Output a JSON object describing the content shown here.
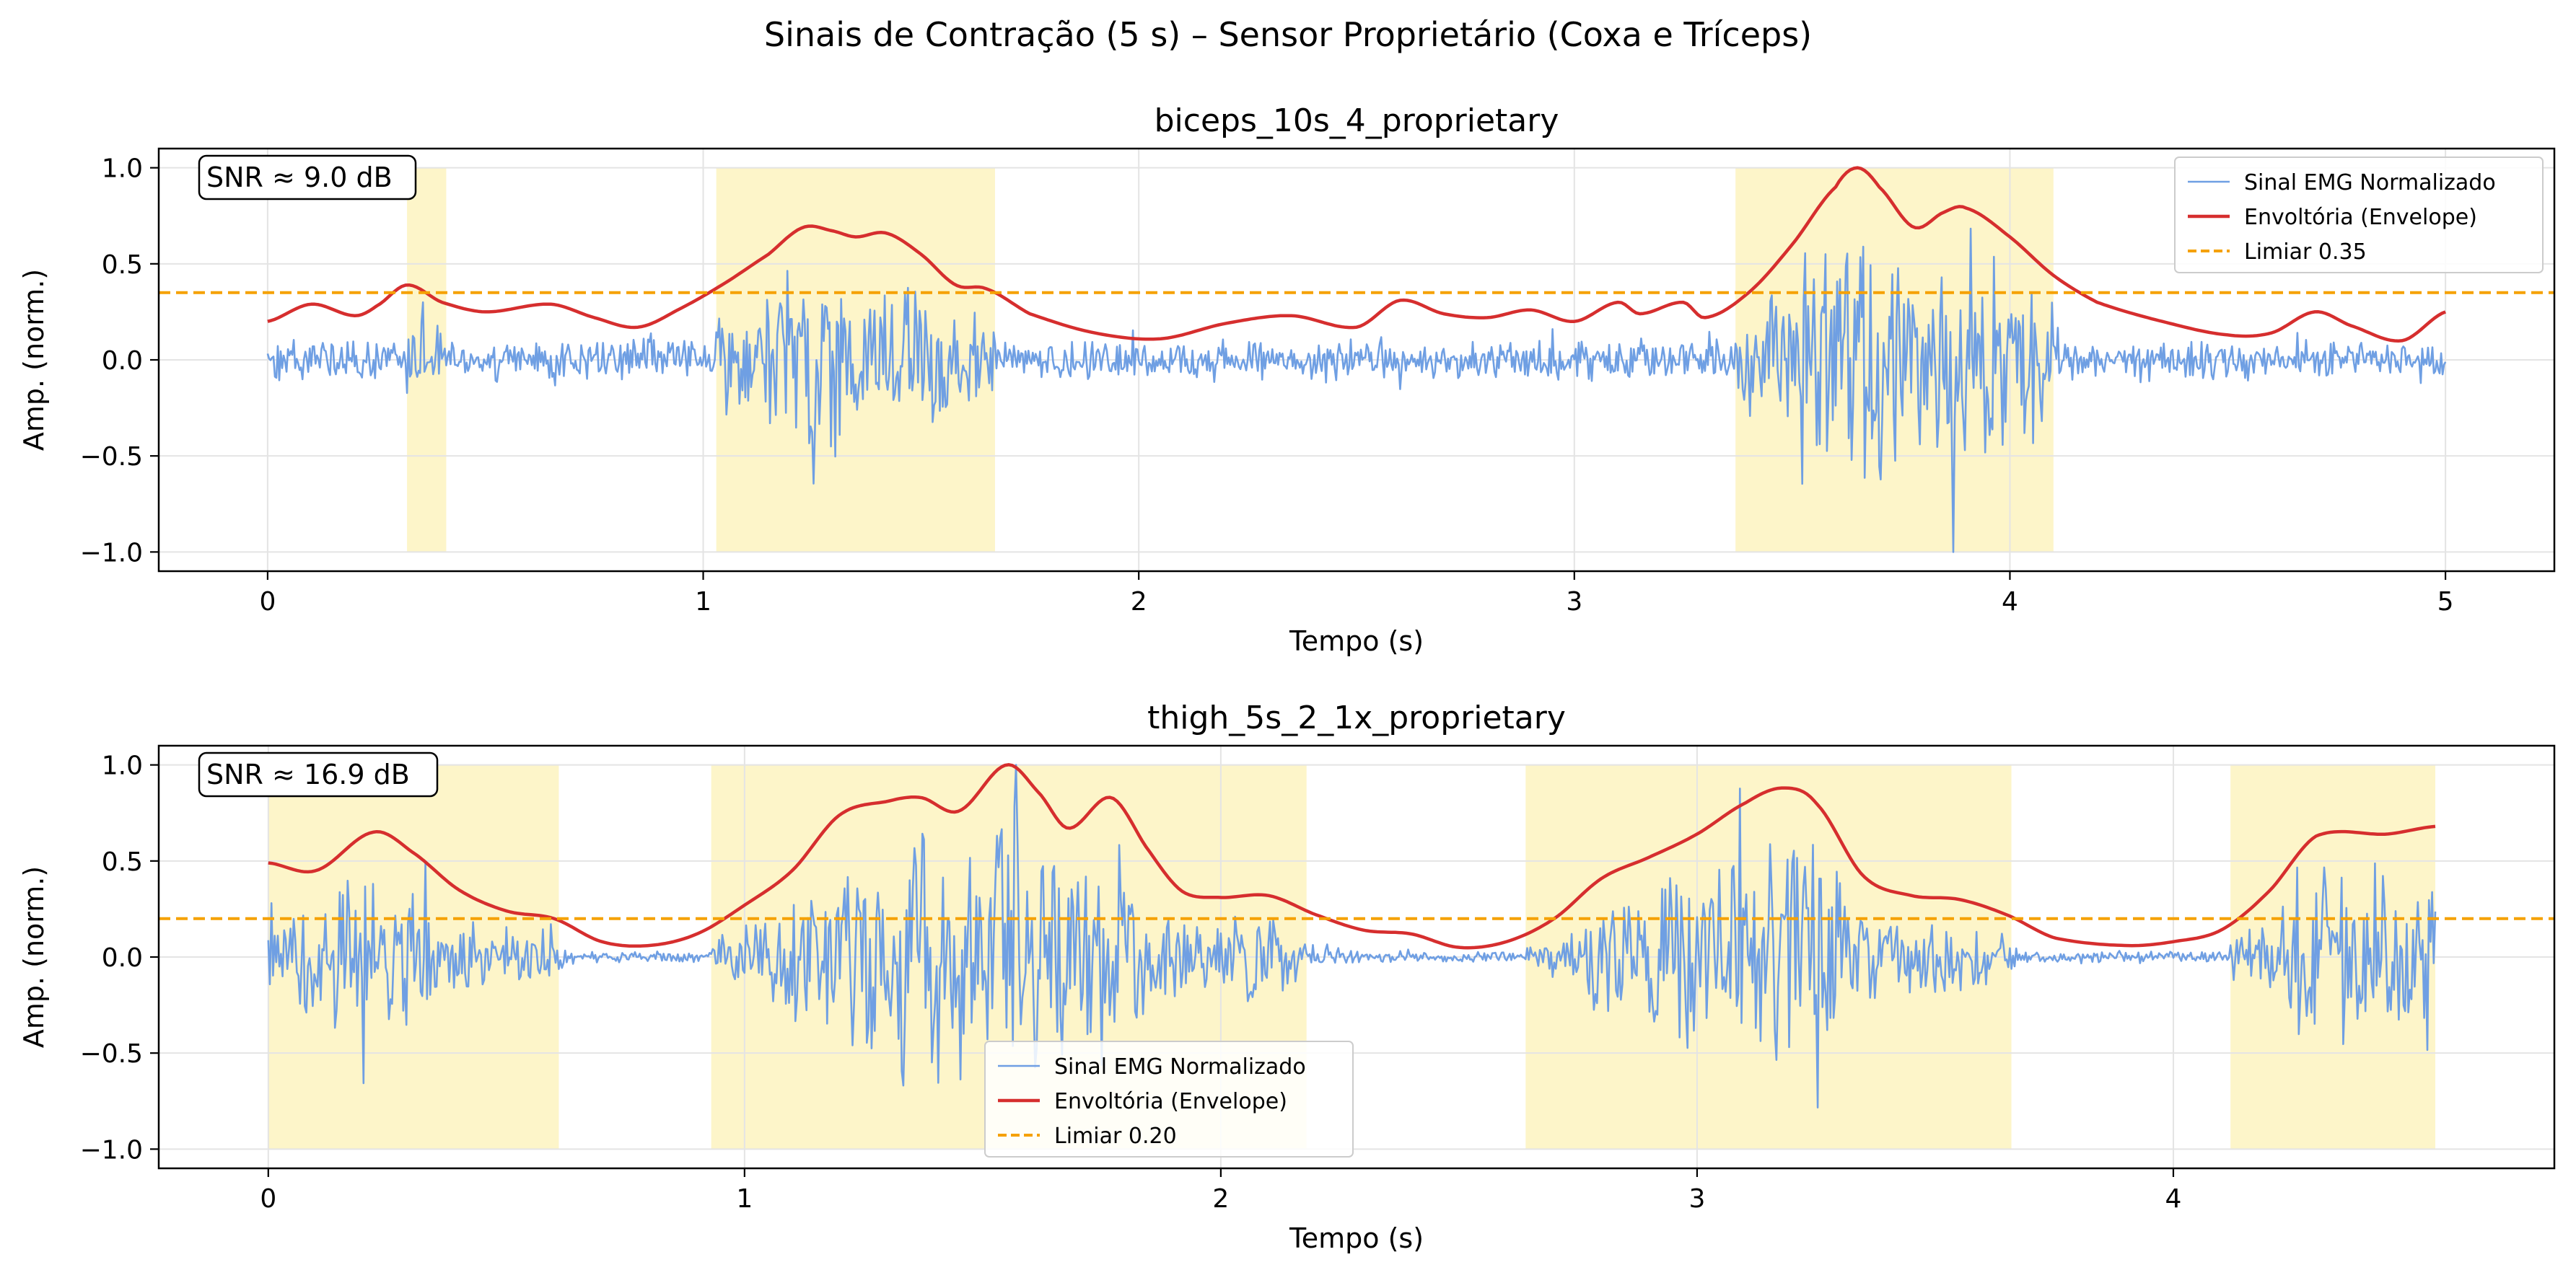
{
  "figure": {
    "suptitle": "Sinais de Contração (5 s) – Sensor Proprietário (Coxa e Tríceps)"
  },
  "colors": {
    "signal": "#6f9fe3",
    "envelope": "#d62e2e",
    "threshold": "#f5a100",
    "shade": "#fdf5c9",
    "grid": "#e4e4e4"
  },
  "chart_data": [
    {
      "type": "line",
      "title": "biceps_10s_4_proprietary",
      "xlabel": "Tempo (s)",
      "ylabel": "Amp. (norm.)",
      "xlim": [
        -0.25,
        5.25
      ],
      "ylim": [
        -1.1,
        1.1
      ],
      "xticks": [
        0,
        1,
        2,
        3,
        4,
        5
      ],
      "yticks": [
        -1.0,
        -0.5,
        0.0,
        0.5,
        1.0
      ],
      "grid": true,
      "legend_position": "top-right",
      "snr_label": "SNR ≈ 9.0 dB",
      "threshold": 0.35,
      "threshold_label": "Limiar 0.35",
      "signal_label": "Sinal EMG Normalizado",
      "envelope_label": "Envoltória (Envelope)",
      "duration": 5.0,
      "signal_seed": 4,
      "signal_base_amplitude": 0.07,
      "signal_peak": [
        3.87,
        -1.0
      ],
      "active_regions": [
        [
          0.32,
          0.41
        ],
        [
          1.03,
          1.67
        ],
        [
          3.37,
          4.1
        ]
      ],
      "envelope": {
        "x": [
          0,
          0.1,
          0.2,
          0.25,
          0.32,
          0.4,
          0.5,
          0.65,
          0.75,
          0.85,
          0.95,
          1.05,
          1.15,
          1.23,
          1.3,
          1.35,
          1.42,
          1.5,
          1.58,
          1.65,
          1.75,
          1.9,
          2.05,
          2.2,
          2.35,
          2.5,
          2.6,
          2.7,
          2.8,
          2.9,
          3.0,
          3.1,
          3.15,
          3.25,
          3.3,
          3.4,
          3.5,
          3.6,
          3.65,
          3.7,
          3.78,
          3.85,
          3.9,
          4.0,
          4.1,
          4.2,
          4.35,
          4.5,
          4.6,
          4.7,
          4.78,
          4.9,
          5.0
        ],
        "y": [
          0.2,
          0.29,
          0.23,
          0.28,
          0.39,
          0.3,
          0.25,
          0.29,
          0.22,
          0.17,
          0.27,
          0.4,
          0.55,
          0.69,
          0.67,
          0.64,
          0.66,
          0.55,
          0.39,
          0.37,
          0.24,
          0.14,
          0.11,
          0.19,
          0.23,
          0.17,
          0.31,
          0.24,
          0.22,
          0.26,
          0.2,
          0.3,
          0.24,
          0.3,
          0.22,
          0.35,
          0.6,
          0.9,
          1.0,
          0.9,
          0.69,
          0.77,
          0.79,
          0.64,
          0.44,
          0.3,
          0.2,
          0.13,
          0.14,
          0.25,
          0.18,
          0.1,
          0.25
        ]
      }
    },
    {
      "type": "line",
      "title": "thigh_5s_2_1x_proprietary",
      "xlabel": "Tempo (s)",
      "ylabel": "Amp. (norm.)",
      "xlim": [
        -0.23,
        4.8
      ],
      "ylim": [
        -1.1,
        1.1
      ],
      "xticks": [
        0,
        1,
        2,
        3,
        4
      ],
      "yticks": [
        -1.0,
        -0.5,
        0.0,
        0.5,
        1.0
      ],
      "grid": true,
      "legend_position": "bottom-center",
      "snr_label": "SNR ≈ 16.9 dB",
      "threshold": 0.2,
      "threshold_label": "Limiar 0.20",
      "signal_label": "Sinal EMG Normalizado",
      "envelope_label": "Envoltória (Envelope)",
      "duration": 4.55,
      "signal_seed": 17,
      "signal_base_amplitude": 0.02,
      "signal_peak": [
        1.57,
        1.0
      ],
      "active_regions": [
        [
          0.0,
          0.61
        ],
        [
          0.93,
          2.18
        ],
        [
          2.64,
          3.66
        ],
        [
          4.12,
          4.55
        ]
      ],
      "envelope": {
        "x": [
          0,
          0.1,
          0.22,
          0.3,
          0.4,
          0.5,
          0.6,
          0.7,
          0.8,
          0.9,
          1.0,
          1.1,
          1.2,
          1.3,
          1.37,
          1.45,
          1.55,
          1.62,
          1.68,
          1.77,
          1.85,
          1.92,
          2.0,
          2.1,
          2.2,
          2.3,
          2.4,
          2.5,
          2.6,
          2.7,
          2.8,
          2.9,
          3.0,
          3.1,
          3.18,
          3.25,
          3.35,
          3.45,
          3.55,
          3.65,
          3.75,
          3.9,
          4.0,
          4.1,
          4.2,
          4.3,
          4.45,
          4.55
        ],
        "y": [
          0.49,
          0.45,
          0.65,
          0.55,
          0.35,
          0.24,
          0.2,
          0.08,
          0.06,
          0.12,
          0.27,
          0.45,
          0.74,
          0.81,
          0.83,
          0.76,
          1.0,
          0.85,
          0.67,
          0.83,
          0.55,
          0.34,
          0.31,
          0.32,
          0.22,
          0.14,
          0.12,
          0.05,
          0.08,
          0.2,
          0.41,
          0.52,
          0.64,
          0.8,
          0.88,
          0.8,
          0.42,
          0.32,
          0.3,
          0.22,
          0.1,
          0.06,
          0.08,
          0.14,
          0.34,
          0.63,
          0.64,
          0.68
        ]
      }
    }
  ]
}
